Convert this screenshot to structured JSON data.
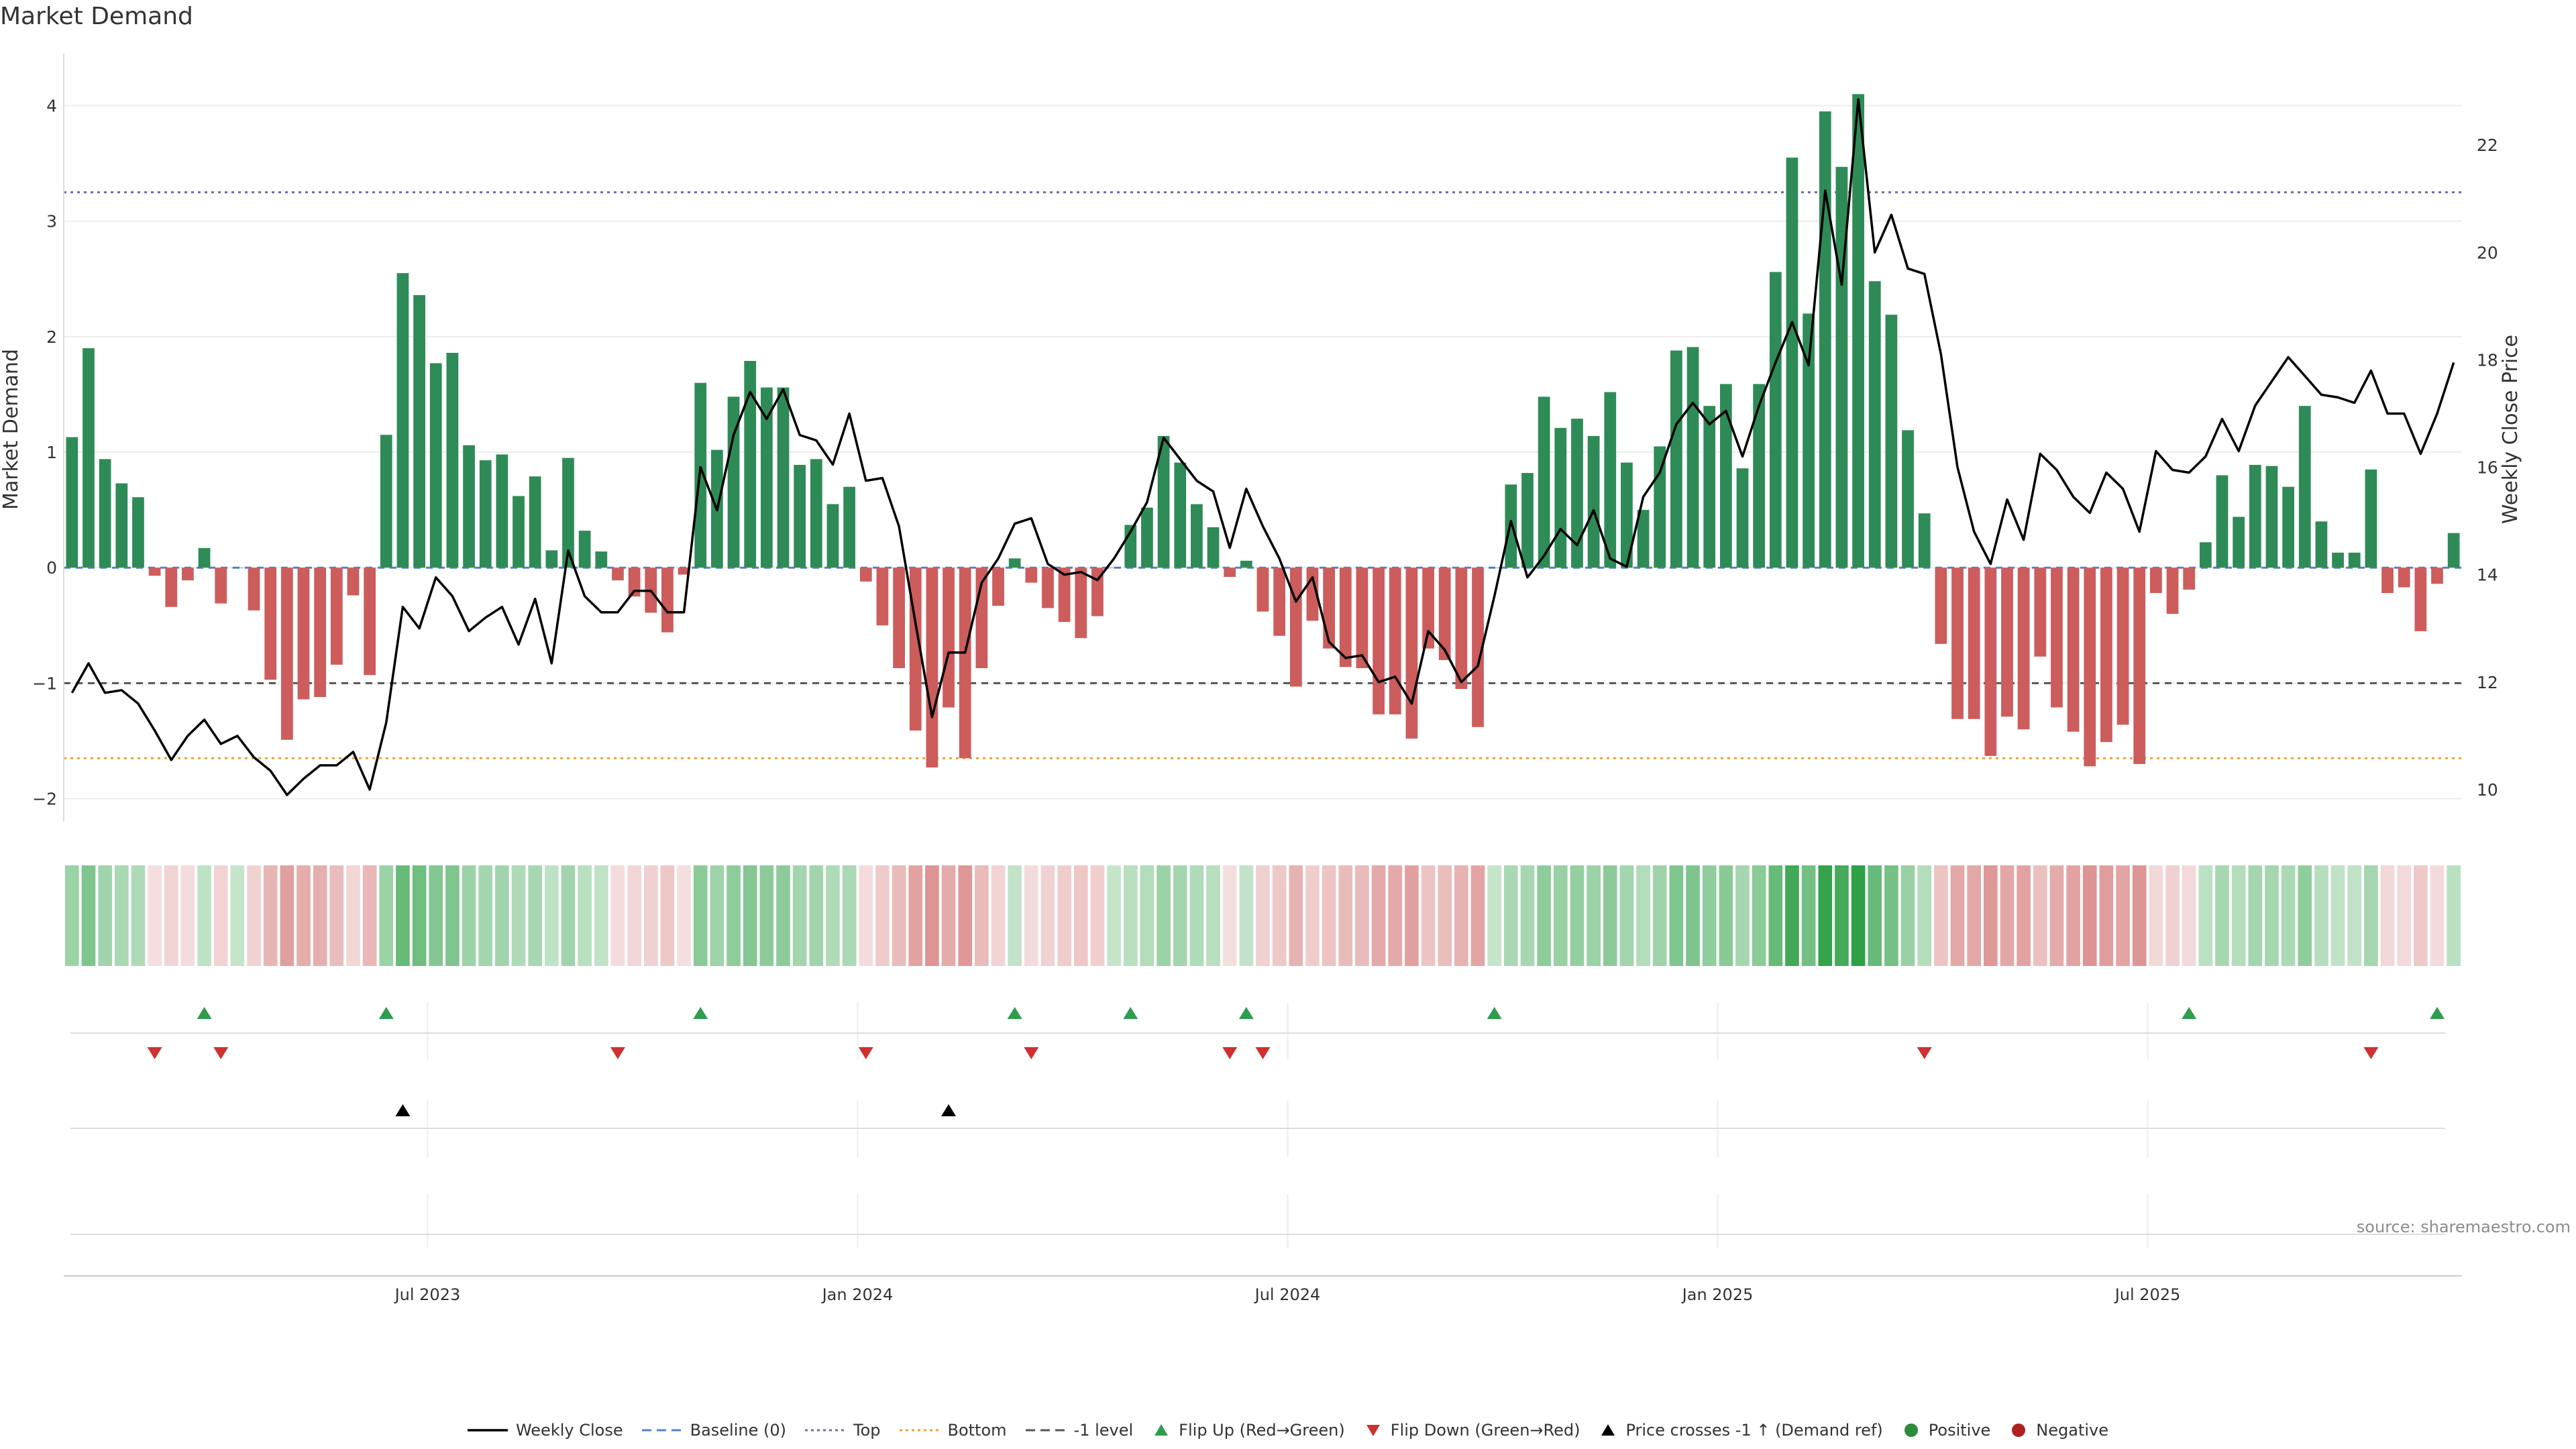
{
  "title": "Market Demand",
  "source": "source: sharemaestro.com",
  "chart_data": {
    "type": "bar",
    "title": "Market Demand",
    "ylabel": "Market Demand",
    "y2label": "Weekly Close Price",
    "ylim": [
      -2.2,
      4.45
    ],
    "y2lim": [
      9.4,
      23.7
    ],
    "yticks": [
      "−2",
      "−1",
      "0",
      "1",
      "2",
      "3",
      "4"
    ],
    "yticks_values": [
      -2,
      -1,
      0,
      1,
      2,
      3,
      4
    ],
    "y2ticks": [
      "10",
      "12",
      "14",
      "16",
      "18",
      "20",
      "22"
    ],
    "y2ticks_values": [
      10,
      12,
      14,
      16,
      18,
      20,
      22
    ],
    "xticks": [
      "Jul 2023",
      "Jan 2024",
      "Jul 2024",
      "Jan 2025",
      "Jul 2025"
    ],
    "xticks_index": [
      22,
      48,
      74,
      100,
      126
    ],
    "reference_lines": [
      {
        "name": "Top",
        "value": 3.25,
        "color": "#6b6bb0",
        "style": "dotted"
      },
      {
        "name": "Bottom",
        "value": -1.65,
        "color": "#f0a030",
        "style": "dotted"
      },
      {
        "name": "-1 level",
        "value": -1.0,
        "color": "#555555",
        "style": "dashed"
      },
      {
        "name": "Baseline (0)",
        "value": 0,
        "color": "#5580c8",
        "style": "dashed"
      }
    ],
    "series": [
      {
        "name": "Market Demand",
        "values": [
          1.13,
          1.9,
          0.94,
          0.73,
          0.61,
          -0.07,
          -0.34,
          -0.11,
          0.17,
          -0.31,
          0,
          -0.37,
          -0.97,
          -1.49,
          -1.14,
          -1.12,
          -0.84,
          -0.24,
          -0.93,
          1.15,
          2.55,
          2.36,
          1.77,
          1.86,
          1.06,
          0.93,
          0.98,
          0.62,
          0.79,
          0.15,
          0.95,
          0.32,
          0.14,
          -0.11,
          -0.25,
          -0.39,
          -0.56,
          -0.06,
          1.6,
          1.02,
          1.48,
          1.79,
          1.56,
          1.56,
          0.89,
          0.94,
          0.55,
          0.7,
          -0.12,
          -0.5,
          -0.87,
          -1.41,
          -1.73,
          -1.21,
          -1.65,
          -0.87,
          -0.33,
          0.08,
          -0.13,
          -0.35,
          -0.47,
          -0.61,
          -0.42,
          0,
          0.37,
          0.52,
          1.14,
          0.91,
          0.55,
          0.35,
          -0.08,
          0.06,
          -0.38,
          -0.59,
          -1.03,
          -0.46,
          -0.7,
          -0.86,
          -0.87,
          -1.27,
          -1.27,
          -1.48,
          -0.7,
          -0.8,
          -1.05,
          -1.38,
          0,
          0.72,
          0.82,
          1.48,
          1.21,
          1.29,
          1.14,
          1.52,
          0.91,
          0.5,
          1.05,
          1.88,
          1.91,
          1.4,
          1.59,
          0.86,
          1.59,
          2.56,
          3.55,
          2.2,
          3.95,
          3.47,
          4.1,
          2.48,
          2.19,
          1.19,
          0.47,
          -0.66,
          -1.31,
          -1.31,
          -1.63,
          -1.29,
          -1.4,
          -0.77,
          -1.21,
          -1.42,
          -1.72,
          -1.51,
          -1.36,
          -1.7,
          -0.22,
          -0.4,
          -0.19,
          0.22,
          0.8,
          0.44,
          0.89,
          0.88,
          0.7,
          1.4,
          0.4,
          0.13,
          0.13,
          0.85,
          -0.22,
          -0.17,
          -0.55,
          -0.14,
          0.3
        ]
      },
      {
        "name": "Weekly Close",
        "values": [
          11.8,
          12.35,
          11.8,
          11.85,
          11.6,
          11.1,
          10.55,
          11.0,
          11.3,
          10.85,
          11.0,
          10.6,
          10.35,
          9.9,
          10.2,
          10.45,
          10.45,
          10.7,
          10.0,
          11.25,
          13.4,
          13.0,
          13.95,
          13.6,
          12.95,
          13.2,
          13.4,
          12.7,
          13.55,
          12.35,
          14.45,
          13.6,
          13.3,
          13.3,
          13.7,
          13.7,
          13.3,
          13.3,
          16.0,
          15.2,
          16.6,
          17.4,
          16.9,
          17.45,
          16.6,
          16.5,
          16.05,
          17.0,
          15.75,
          15.8,
          14.9,
          13.1,
          11.35,
          12.55,
          12.55,
          13.85,
          14.3,
          14.95,
          15.05,
          14.2,
          14.0,
          14.05,
          13.9,
          14.3,
          14.8,
          15.35,
          16.55,
          16.15,
          15.75,
          15.55,
          14.5,
          15.6,
          14.9,
          14.3,
          13.5,
          13.95,
          12.75,
          12.45,
          12.5,
          12.0,
          12.1,
          11.6,
          12.95,
          12.6,
          12.0,
          12.3,
          13.6,
          15.0,
          13.95,
          14.35,
          14.85,
          14.55,
          15.2,
          14.3,
          14.15,
          15.45,
          15.9,
          16.8,
          17.2,
          16.8,
          17.05,
          16.2,
          17.15,
          17.95,
          18.7,
          17.9,
          21.15,
          19.4,
          22.85,
          20.0,
          20.7,
          19.7,
          19.6,
          18.1,
          16.0,
          14.8,
          14.2,
          15.4,
          14.65,
          16.25,
          15.95,
          15.45,
          15.15,
          15.9,
          15.6,
          14.8,
          16.3,
          15.95,
          15.9,
          16.2,
          16.9,
          16.3,
          17.15,
          17.6,
          18.05,
          17.7,
          17.35,
          17.3,
          17.2,
          17.8,
          17.0,
          17.0,
          16.25,
          17.0,
          17.95
        ]
      }
    ],
    "flip_up_index": [
      8,
      19,
      38,
      57,
      64,
      71,
      86,
      128,
      143
    ],
    "flip_down_index": [
      5,
      9,
      33,
      48,
      58,
      70,
      72,
      112,
      139
    ],
    "price_crosses_index": [
      20,
      53
    ]
  },
  "legend": {
    "items": [
      {
        "label": "Weekly Close",
        "symbol": "line",
        "color": "#000000"
      },
      {
        "label": "Baseline (0)",
        "symbol": "dash",
        "color": "#5580c8"
      },
      {
        "label": "Top",
        "symbol": "dot",
        "color": "#6b6bb0"
      },
      {
        "label": "Bottom",
        "symbol": "dot",
        "color": "#f0a030"
      },
      {
        "label": "-1 level",
        "symbol": "dash",
        "color": "#555555"
      },
      {
        "label": "Flip Up (Red→Green)",
        "symbol": "tri-up",
        "color": "#2e9e4e"
      },
      {
        "label": "Flip Down (Green→Red)",
        "symbol": "tri-down",
        "color": "#d03030"
      },
      {
        "label": "Price crosses -1 ↑ (Demand ref)",
        "symbol": "tri-up",
        "color": "#000000"
      },
      {
        "label": "Positive",
        "symbol": "circle",
        "color": "#2e8b3a"
      },
      {
        "label": "Negative",
        "symbol": "circle",
        "color": "#b02020"
      }
    ]
  },
  "colors": {
    "positive_bar": "#2e8b57",
    "negative_bar": "#cd5c5c",
    "price_line": "#000000",
    "flip_up": "#2e9e4e",
    "flip_down": "#d03030",
    "cross": "#000000",
    "grid": "#ececec"
  }
}
